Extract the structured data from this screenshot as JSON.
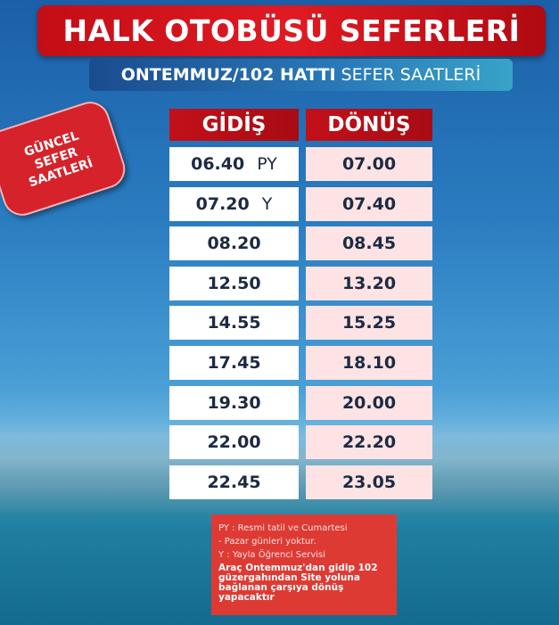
{
  "title": "HALK OTOBÜSÜ SEFERLERİ",
  "subtitle": {
    "bold": "ONTEMMUZ/102 HATTI",
    "light": "SEFER SAATLERİ"
  },
  "sticker": [
    "GÜNCEL",
    "SEFER",
    "SAATLERİ"
  ],
  "table": {
    "headers": [
      "GİDİŞ",
      "DÖNÜŞ"
    ],
    "rows": [
      {
        "gidis": "06.40",
        "tag": "PY",
        "donus": "07.00"
      },
      {
        "gidis": "07.20",
        "tag": "Y",
        "donus": "07.40"
      },
      {
        "gidis": "08.20",
        "tag": "",
        "donus": "08.45"
      },
      {
        "gidis": "12.50",
        "tag": "",
        "donus": "13.20"
      },
      {
        "gidis": "14.55",
        "tag": "",
        "donus": "15.25"
      },
      {
        "gidis": "17.45",
        "tag": "",
        "donus": "18.10"
      },
      {
        "gidis": "19.30",
        "tag": "",
        "donus": "20.00"
      },
      {
        "gidis": "22.00",
        "tag": "",
        "donus": "22.20"
      },
      {
        "gidis": "22.45",
        "tag": "",
        "donus": "23.05"
      }
    ]
  },
  "notes": {
    "lines": [
      "PY : Resmi tatil ve Cumartesi",
      "- Pazar günleri yoktur.",
      "Y : Yayla Öğrenci Servisi"
    ],
    "bold": "Araç Ontemmuz'dan gidip 102 güzergahından Site yoluna bağlanan çarşıya dönüş yapacaktır"
  },
  "colors": {
    "red": "#d6222b",
    "blue": "#1a4c8e",
    "donus_bg": "#fde3e3"
  }
}
